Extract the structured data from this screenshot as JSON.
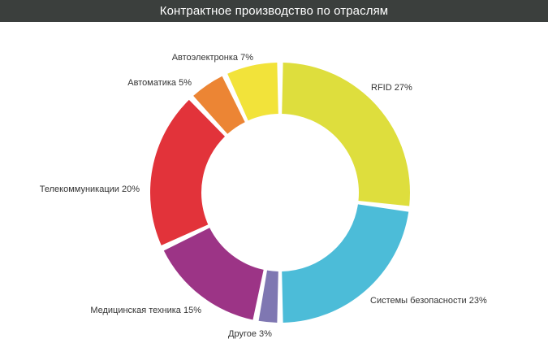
{
  "chart_data": {
    "type": "pie",
    "title": "Контрактное производство по отраслям",
    "donut": true,
    "categories": [
      "RFID",
      "Системы безопасности",
      "Другое",
      "Медицинская техника",
      "Телекоммуникации",
      "Автоматика",
      "Автоэлектронка"
    ],
    "values": [
      27,
      23,
      3,
      15,
      20,
      5,
      7
    ],
    "labels": [
      "RFID 27%",
      "Системы безопасности 23%",
      "Другое 3%",
      "Медицинская техника 15%",
      "Телекоммуникации 20%",
      "Автоматика 5%",
      "Автоэлектронка 7%"
    ],
    "colors": [
      "#dede3d",
      "#4cbcd8",
      "#7f77b2",
      "#9c3486",
      "#e2333a",
      "#ec8534",
      "#f2e33a"
    ],
    "legend": "none"
  }
}
